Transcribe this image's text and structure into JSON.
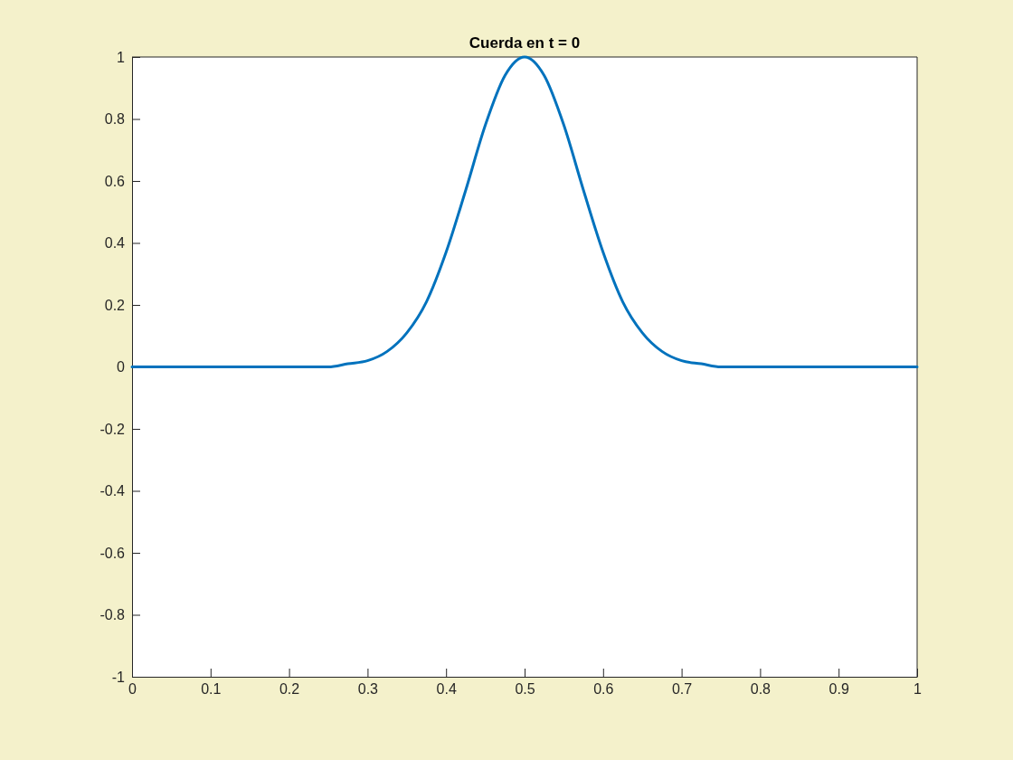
{
  "chart_data": {
    "type": "line",
    "title": "Cuerda en t = 0",
    "x": [
      0,
      0.1,
      0.2,
      0.25,
      0.275,
      0.3,
      0.325,
      0.35,
      0.375,
      0.4,
      0.425,
      0.45,
      0.475,
      0.5,
      0.525,
      0.55,
      0.575,
      0.6,
      0.625,
      0.65,
      0.675,
      0.7,
      0.725,
      0.75,
      0.8,
      0.9,
      1
    ],
    "series": [
      {
        "color": "#0072bd",
        "values": [
          0,
          0,
          0,
          0,
          0.01,
          0.02,
          0.05,
          0.11,
          0.21,
          0.37,
          0.57,
          0.78,
          0.94,
          1,
          0.94,
          0.78,
          0.57,
          0.37,
          0.21,
          0.11,
          0.05,
          0.02,
          0.01,
          0,
          0,
          0,
          0
        ]
      }
    ],
    "xlim": [
      0,
      1
    ],
    "xticks": [
      0,
      0.1,
      0.2,
      0.3,
      0.4,
      0.5,
      0.6,
      0.7,
      0.8,
      0.9,
      1
    ],
    "ylim": [
      -1,
      1
    ],
    "yticks": [
      -1,
      -0.8,
      -0.6,
      -0.4,
      -0.2,
      0,
      0.2,
      0.4,
      0.6,
      0.8,
      1
    ],
    "grid": false,
    "marker": "none",
    "line_style": "solid"
  }
}
